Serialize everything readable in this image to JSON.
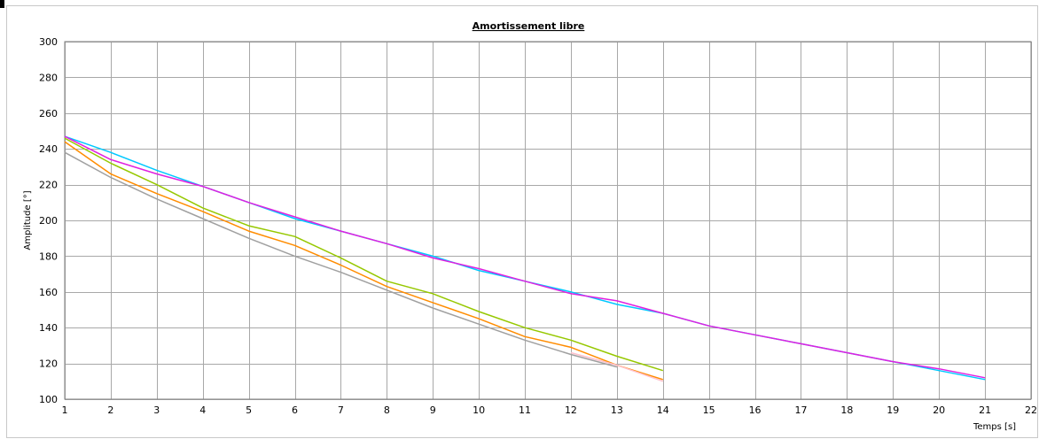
{
  "chart_data": {
    "type": "line",
    "title": "Amortissement libre",
    "xlabel": "Temps [s]",
    "ylabel": "Amplitude [°]",
    "xlim": [
      1,
      22
    ],
    "ylim": [
      100,
      300
    ],
    "xticks": [
      1,
      2,
      3,
      4,
      5,
      6,
      7,
      8,
      9,
      10,
      11,
      12,
      13,
      14,
      15,
      16,
      17,
      18,
      19,
      20,
      21,
      22
    ],
    "yticks": [
      100,
      120,
      140,
      160,
      180,
      200,
      220,
      240,
      260,
      280,
      300
    ],
    "grid": true,
    "series": [
      {
        "color": "#00c8ff",
        "x": [
          1,
          2,
          3,
          4,
          5,
          6,
          7,
          8,
          9,
          10,
          11,
          12,
          13,
          14,
          15,
          16,
          17,
          18,
          19,
          20,
          21
        ],
        "y": [
          247,
          238,
          228,
          219,
          210,
          201,
          194,
          187,
          180,
          172,
          166,
          160,
          153,
          148,
          141,
          136,
          131,
          126,
          121,
          116,
          111
        ]
      },
      {
        "color": "#e020e0",
        "x": [
          1,
          2,
          3,
          4,
          5,
          6,
          7,
          8,
          9,
          10,
          11,
          12,
          13,
          14,
          15,
          16,
          17,
          18,
          19,
          20,
          21
        ],
        "y": [
          247,
          234,
          226,
          219,
          210,
          202,
          194,
          187,
          179,
          173,
          166,
          159,
          155,
          148,
          141,
          136,
          131,
          126,
          121,
          117,
          112
        ]
      },
      {
        "color": "#96c800",
        "x": [
          1,
          2,
          3,
          4,
          5,
          6,
          7,
          8,
          9,
          10,
          11,
          12,
          13,
          14
        ],
        "y": [
          246,
          232,
          220,
          207,
          197,
          191,
          179,
          166,
          159,
          149,
          140,
          133,
          124,
          116
        ]
      },
      {
        "color": "#ff8c00",
        "x": [
          1,
          2,
          3,
          4,
          5,
          6,
          7,
          8,
          9,
          10,
          11,
          12,
          13,
          14
        ],
        "y": [
          244,
          226,
          215,
          205,
          194,
          186,
          175,
          163,
          154,
          145,
          135,
          129,
          119,
          111
        ]
      },
      {
        "color": "#a0a0a0",
        "x": [
          1,
          2,
          3,
          4,
          5,
          6,
          7,
          8,
          9,
          10,
          11,
          12,
          13
        ],
        "y": [
          238,
          224,
          212,
          201,
          190,
          180,
          171,
          161,
          151,
          142,
          133,
          125,
          118
        ]
      },
      {
        "color": "#ffc0cb",
        "x": [
          12,
          13,
          14
        ],
        "y": [
          126,
          119,
          110
        ]
      }
    ]
  }
}
